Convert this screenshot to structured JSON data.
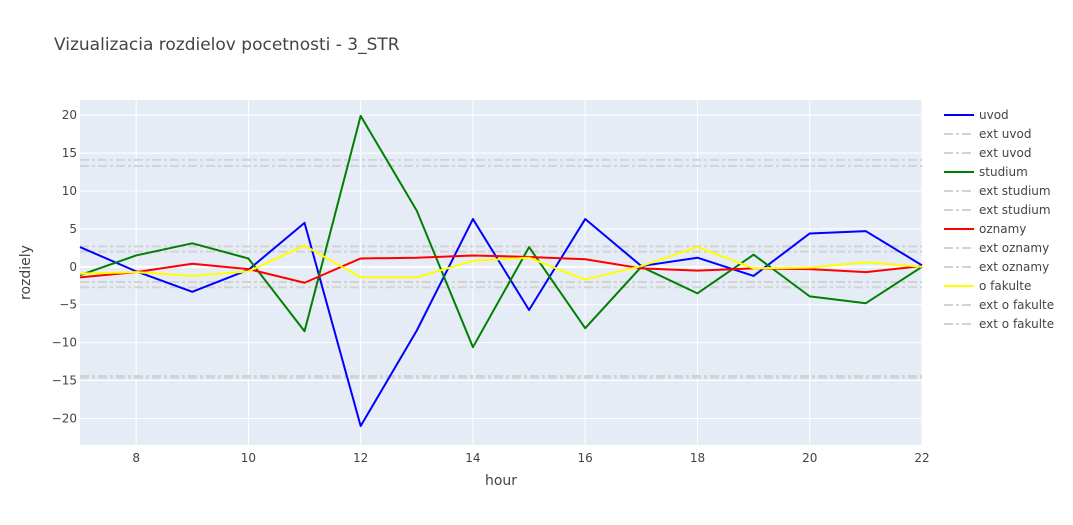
{
  "chart_data": {
    "type": "line",
    "title": "Vizualizacia rozdielov pocetnosti - 3_STR",
    "xlabel": "hour",
    "ylabel": "rozdiely",
    "xlim": [
      7,
      22
    ],
    "ylim": [
      -23.5,
      22
    ],
    "x_ticks": [
      8,
      10,
      12,
      14,
      16,
      18,
      20,
      22
    ],
    "y_ticks": [
      20,
      15,
      10,
      5,
      0,
      -5,
      -10,
      -15,
      -20
    ],
    "y_tick_labels": [
      "20",
      "15",
      "10",
      "5",
      "0",
      "−5",
      "−10",
      "−15",
      "−20"
    ],
    "grid": true,
    "legend_position": "right",
    "x": [
      7,
      8,
      9,
      10,
      11,
      12,
      13,
      14,
      15,
      16,
      17,
      18,
      19,
      20,
      21,
      22
    ],
    "series": [
      {
        "name": "uvod",
        "color": "#0000ff",
        "style": "solid",
        "x": [
          7,
          8,
          9,
          10,
          11,
          12,
          13,
          14,
          15,
          16,
          17,
          18,
          19,
          20,
          21,
          22
        ],
        "values": [
          2.6,
          -0.6,
          -3.3,
          -0.4,
          5.8,
          -21.0,
          -8.4,
          6.3,
          -5.7,
          6.3,
          0.1,
          1.2,
          -1.2,
          4.4,
          4.7,
          0.2
        ]
      },
      {
        "name": "ext uvod",
        "color": "#d3d3d3",
        "style": "dashdot",
        "constant": 13.3
      },
      {
        "name": "ext uvod",
        "color": "#d3d3d3",
        "style": "dashdot",
        "constant": -14.6
      },
      {
        "name": "studium",
        "color": "#008000",
        "style": "solid",
        "x": [
          7,
          8,
          9,
          10,
          11,
          12,
          13,
          14,
          15,
          16,
          17,
          18,
          19,
          20,
          21,
          22
        ],
        "values": [
          -1.1,
          1.5,
          3.1,
          1.1,
          -8.5,
          19.9,
          7.4,
          -10.6,
          2.6,
          -8.1,
          0.0,
          -3.5,
          1.6,
          -3.9,
          -4.8,
          0.0
        ]
      },
      {
        "name": "ext studium",
        "color": "#d3d3d3",
        "style": "dashdot",
        "constant": 14.1
      },
      {
        "name": "ext studium",
        "color": "#d3d3d3",
        "style": "dashdot",
        "constant": -14.4
      },
      {
        "name": "oznamy",
        "color": "#ff0000",
        "style": "solid",
        "x": [
          7,
          8,
          9,
          10,
          11,
          12,
          13,
          14,
          15,
          16,
          17,
          18,
          19,
          20,
          21,
          22
        ],
        "values": [
          -1.4,
          -0.7,
          0.4,
          -0.3,
          -2.1,
          1.1,
          1.2,
          1.5,
          1.3,
          1.0,
          -0.2,
          -0.5,
          -0.2,
          -0.3,
          -0.7,
          0.1
        ]
      },
      {
        "name": "ext oznamy",
        "color": "#d3d3d3",
        "style": "dashdot",
        "constant": 2.0
      },
      {
        "name": "ext oznamy",
        "color": "#d3d3d3",
        "style": "dashdot",
        "constant": -2.0
      },
      {
        "name": "o fakulte",
        "color": "#ffff00",
        "style": "solid",
        "x": [
          7,
          8,
          9,
          10,
          11,
          12,
          13,
          14,
          15,
          16,
          17,
          18,
          19,
          20,
          21,
          22
        ],
        "values": [
          -0.9,
          -0.7,
          -1.2,
          -0.6,
          2.8,
          -1.4,
          -1.4,
          0.8,
          1.2,
          -1.7,
          0.1,
          2.6,
          -0.2,
          -0.1,
          0.6,
          0.0
        ]
      },
      {
        "name": "ext o fakulte",
        "color": "#d3d3d3",
        "style": "dashdot",
        "constant": 2.7
      },
      {
        "name": "ext o fakulte",
        "color": "#d3d3d3",
        "style": "dashdot",
        "constant": -2.7
      }
    ]
  },
  "colors": {
    "plot_background": "#e5ecf6",
    "grid": "#ffffff",
    "text": "#444444"
  }
}
